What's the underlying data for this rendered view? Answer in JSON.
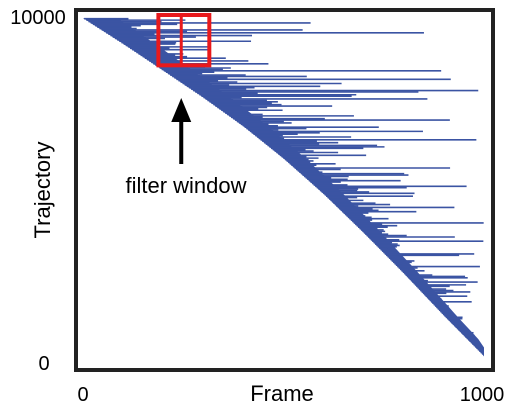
{
  "chart_data": {
    "type": "area",
    "xlabel": "Frame",
    "ylabel": "Trajectory",
    "xlim": [
      0,
      1000
    ],
    "ylim": [
      0,
      10000
    ],
    "x_tick_labels": [
      "0",
      "1000"
    ],
    "y_tick_labels": [
      "0",
      "10000"
    ],
    "series_color": "#3b54a3",
    "start_frame_curve": {
      "frame": [
        0,
        100,
        200,
        300,
        400,
        500,
        600,
        700,
        800,
        900,
        1000
      ],
      "trajectory": [
        10000,
        9240,
        8450,
        7650,
        6800,
        5850,
        4800,
        3650,
        2450,
        1200,
        0
      ]
    },
    "max_end_frame": 1000,
    "filter_window": {
      "label": "filter window",
      "frame_range": [
        188,
        315
      ],
      "trajectory_range": [
        8600,
        10000
      ],
      "center_frame": 245,
      "color": "#e8191c"
    }
  }
}
